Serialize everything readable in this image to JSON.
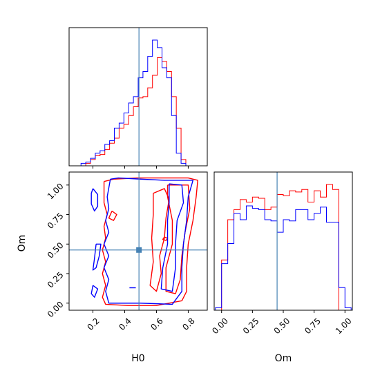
{
  "chart_data": {
    "type": "corner",
    "parameters": [
      "H0",
      "Om"
    ],
    "axis_labels": {
      "x": [
        "H0",
        "Om"
      ],
      "y": [
        "Om"
      ]
    },
    "truth": {
      "H0": 0.49,
      "Om": 0.45
    },
    "truth_color": "#4682b4",
    "series": [
      {
        "color": "#ff0000"
      },
      {
        "color": "#0000ff"
      }
    ],
    "panels": {
      "H0_hist": {
        "xlim": [
          0.05,
          0.92
        ],
        "bin_edges": [
          0.125,
          0.155,
          0.185,
          0.215,
          0.245,
          0.275,
          0.305,
          0.335,
          0.365,
          0.395,
          0.425,
          0.455,
          0.485,
          0.515,
          0.545,
          0.575,
          0.605,
          0.635,
          0.665,
          0.695,
          0.725,
          0.755,
          0.785,
          0.815
        ],
        "red": [
          0.0,
          0.02,
          0.05,
          0.08,
          0.09,
          0.13,
          0.18,
          0.22,
          0.3,
          0.33,
          0.4,
          0.47,
          0.54,
          0.55,
          0.62,
          0.72,
          0.86,
          0.83,
          0.75,
          0.55,
          0.3,
          0.05,
          0.0
        ],
        "blue": [
          0.02,
          0.03,
          0.06,
          0.1,
          0.12,
          0.17,
          0.2,
          0.3,
          0.34,
          0.42,
          0.5,
          0.55,
          0.7,
          0.75,
          0.87,
          1.0,
          0.94,
          0.78,
          0.7,
          0.4,
          0.1,
          0.02,
          0.0
        ]
      },
      "Om_hist": {
        "xlim": [
          -0.06,
          1.06
        ],
        "bin_edges": [
          -0.05,
          0.0,
          0.05,
          0.1,
          0.15,
          0.2,
          0.25,
          0.3,
          0.35,
          0.4,
          0.45,
          0.5,
          0.55,
          0.6,
          0.65,
          0.7,
          0.75,
          0.8,
          0.85,
          0.9,
          0.95,
          1.0,
          1.05
        ],
        "red": [
          0.0,
          0.4,
          0.72,
          0.8,
          0.88,
          0.86,
          0.9,
          0.89,
          0.8,
          0.82,
          0.92,
          0.91,
          0.95,
          0.94,
          0.96,
          0.86,
          0.95,
          0.9,
          1.0,
          0.96,
          0.0,
          0.0
        ],
        "blue": [
          0.02,
          0.37,
          0.53,
          0.77,
          0.72,
          0.83,
          0.81,
          0.8,
          0.72,
          0.71,
          0.62,
          0.72,
          0.71,
          0.8,
          0.8,
          0.72,
          0.77,
          0.82,
          0.7,
          0.7,
          0.18,
          0.02
        ]
      },
      "joint": {
        "xlim": [
          0.05,
          0.92
        ],
        "ylim": [
          -0.06,
          1.11
        ],
        "contours": [
          {
            "series": 0,
            "points": [
              [
                0.27,
                1.03
              ],
              [
                0.33,
                1.05
              ],
              [
                0.48,
                1.06
              ],
              [
                0.65,
                1.06
              ],
              [
                0.8,
                1.06
              ],
              [
                0.86,
                1.04
              ],
              [
                0.85,
                0.9
              ],
              [
                0.83,
                0.7
              ],
              [
                0.8,
                0.5
              ],
              [
                0.79,
                0.3
              ],
              [
                0.79,
                0.1
              ],
              [
                0.76,
                0.02
              ],
              [
                0.6,
                -0.02
              ],
              [
                0.42,
                -0.02
              ],
              [
                0.28,
                -0.01
              ],
              [
                0.26,
                0.05
              ],
              [
                0.28,
                0.15
              ],
              [
                0.26,
                0.25
              ],
              [
                0.28,
                0.35
              ],
              [
                0.26,
                0.45
              ],
              [
                0.28,
                0.55
              ],
              [
                0.27,
                0.65
              ],
              [
                0.29,
                0.75
              ],
              [
                0.27,
                0.85
              ],
              [
                0.27,
                1.03
              ]
            ]
          },
          {
            "series": 0,
            "points": [
              [
                0.67,
                1.0
              ],
              [
                0.8,
                1.0
              ],
              [
                0.81,
                0.8
              ],
              [
                0.78,
                0.6
              ],
              [
                0.76,
                0.4
              ],
              [
                0.75,
                0.2
              ],
              [
                0.72,
                0.08
              ],
              [
                0.66,
                0.1
              ],
              [
                0.66,
                0.3
              ],
              [
                0.7,
                0.5
              ],
              [
                0.7,
                0.7
              ],
              [
                0.67,
                0.9
              ],
              [
                0.67,
                1.0
              ]
            ]
          },
          {
            "series": 0,
            "points": [
              [
                0.58,
                0.93
              ],
              [
                0.65,
                0.97
              ],
              [
                0.68,
                0.88
              ],
              [
                0.66,
                0.72
              ],
              [
                0.65,
                0.55
              ],
              [
                0.62,
                0.4
              ],
              [
                0.63,
                0.25
              ],
              [
                0.6,
                0.1
              ],
              [
                0.56,
                0.15
              ],
              [
                0.58,
                0.35
              ],
              [
                0.57,
                0.55
              ],
              [
                0.58,
                0.75
              ],
              [
                0.58,
                0.93
              ]
            ]
          },
          {
            "series": 0,
            "points": [
              [
                0.32,
                0.78
              ],
              [
                0.35,
                0.75
              ],
              [
                0.33,
                0.7
              ],
              [
                0.3,
                0.72
              ],
              [
                0.32,
                0.78
              ]
            ]
          },
          {
            "series": 0,
            "points": [
              [
                0.65,
                0.56
              ],
              [
                0.67,
                0.55
              ],
              [
                0.66,
                0.53
              ],
              [
                0.64,
                0.54
              ],
              [
                0.65,
                0.56
              ]
            ]
          },
          {
            "series": 1,
            "points": [
              [
                0.31,
                1.05
              ],
              [
                0.36,
                1.06
              ],
              [
                0.5,
                1.05
              ],
              [
                0.65,
                1.04
              ],
              [
                0.75,
                1.04
              ],
              [
                0.83,
                1.04
              ],
              [
                0.8,
                0.9
              ],
              [
                0.79,
                0.7
              ],
              [
                0.77,
                0.5
              ],
              [
                0.76,
                0.3
              ],
              [
                0.76,
                0.1
              ],
              [
                0.7,
                -0.01
              ],
              [
                0.5,
                0.0
              ],
              [
                0.3,
                0.0
              ],
              [
                0.28,
                0.1
              ],
              [
                0.3,
                0.2
              ],
              [
                0.27,
                0.3
              ],
              [
                0.3,
                0.4
              ],
              [
                0.27,
                0.5
              ],
              [
                0.3,
                0.6
              ],
              [
                0.28,
                0.7
              ],
              [
                0.3,
                0.8
              ],
              [
                0.29,
                0.9
              ],
              [
                0.31,
                1.05
              ]
            ]
          },
          {
            "series": 1,
            "points": [
              [
                0.68,
                1.01
              ],
              [
                0.76,
                1.0
              ],
              [
                0.77,
                0.85
              ],
              [
                0.73,
                0.7
              ],
              [
                0.72,
                0.5
              ],
              [
                0.72,
                0.3
              ],
              [
                0.7,
                0.1
              ],
              [
                0.63,
                0.12
              ],
              [
                0.64,
                0.3
              ],
              [
                0.67,
                0.5
              ],
              [
                0.67,
                0.7
              ],
              [
                0.68,
                0.85
              ],
              [
                0.68,
                1.01
              ]
            ]
          },
          {
            "series": 1,
            "points": [
              [
                0.2,
                0.97
              ],
              [
                0.23,
                0.92
              ],
              [
                0.23,
                0.82
              ],
              [
                0.21,
                0.78
              ],
              [
                0.19,
                0.84
              ],
              [
                0.19,
                0.93
              ],
              [
                0.2,
                0.97
              ]
            ]
          },
          {
            "series": 1,
            "points": [
              [
                0.22,
                0.5
              ],
              [
                0.25,
                0.5
              ],
              [
                0.24,
                0.4
              ],
              [
                0.22,
                0.3
              ],
              [
                0.2,
                0.28
              ],
              [
                0.21,
                0.38
              ],
              [
                0.22,
                0.5
              ]
            ]
          },
          {
            "series": 1,
            "points": [
              [
                0.2,
                0.15
              ],
              [
                0.23,
                0.12
              ],
              [
                0.21,
                0.05
              ],
              [
                0.19,
                0.08
              ],
              [
                0.2,
                0.15
              ]
            ]
          },
          {
            "series": 1,
            "points": [
              [
                0.43,
                0.13
              ],
              [
                0.47,
                0.13
              ]
            ]
          }
        ]
      }
    },
    "ticks": {
      "H0": [
        "0.2",
        "0.4",
        "0.6",
        "0.8"
      ],
      "H0_values": [
        0.2,
        0.4,
        0.6,
        0.8
      ],
      "Om": [
        "0.00",
        "0.25",
        "0.50",
        "0.75",
        "1.00"
      ],
      "Om_values": [
        0.0,
        0.25,
        0.5,
        0.75,
        1.0
      ]
    }
  }
}
